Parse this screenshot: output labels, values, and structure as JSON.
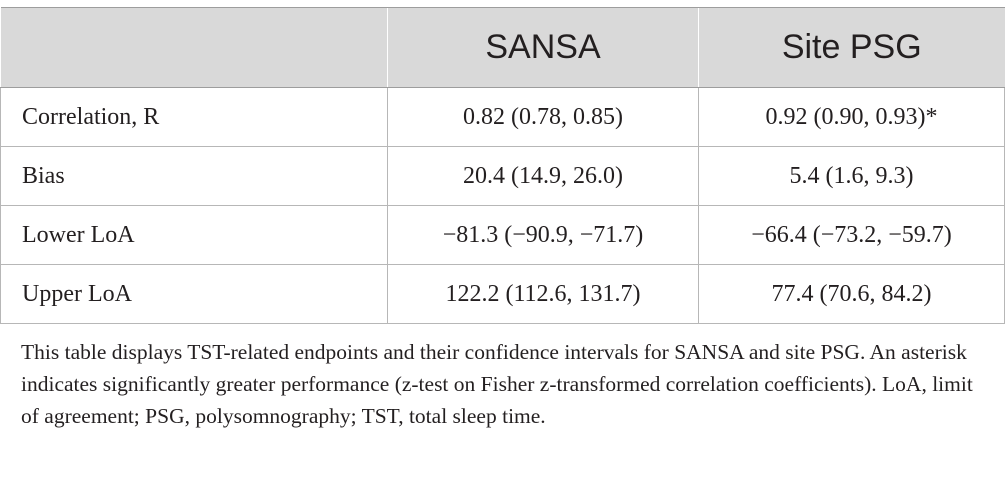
{
  "table": {
    "columns": [
      "",
      "SANSA",
      "Site PSG"
    ],
    "rows": [
      {
        "label": "Correlation, R",
        "sansa": "0.82 (0.78, 0.85)",
        "site_psg": "0.92 (0.90, 0.93)*"
      },
      {
        "label": "Bias",
        "sansa": "20.4 (14.9, 26.0)",
        "site_psg": "5.4 (1.6, 9.3)"
      },
      {
        "label": "Lower LoA",
        "sansa": "−81.3 (−90.9, −71.7)",
        "site_psg": "−66.4 (−73.2, −59.7)"
      },
      {
        "label": "Upper LoA",
        "sansa": "122.2 (112.6, 131.7)",
        "site_psg": "77.4 (70.6, 84.2)"
      }
    ]
  },
  "footnote": "This table displays TST-related endpoints and their confidence intervals for SANSA and site PSG. An asterisk indicates significantly greater performance (z-test on Fisher z-transformed correlation coefficients). LoA, limit of agreement; PSG, polysomnography; TST, total sleep time."
}
